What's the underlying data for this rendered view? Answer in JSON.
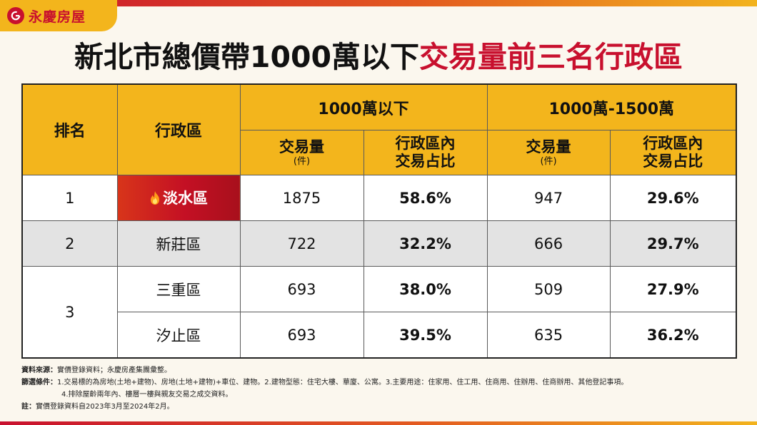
{
  "brand": {
    "name": "永慶房屋",
    "primary_color": "#c8102e",
    "accent_color": "#f3b51c",
    "logo_icon": "g-circle-icon"
  },
  "title": {
    "black": "新北市總價帶1000萬以下",
    "red": "交易量前三名行政區"
  },
  "table": {
    "col_rank": "排名",
    "col_district": "行政區",
    "group1": "1000萬以下",
    "group2": "1000萬-1500萬",
    "sub_volume": "交易量",
    "sub_unit": "(件)",
    "sub_share_line1": "行政區內",
    "sub_share_line2": "交易占比",
    "rows": [
      {
        "rank": "1",
        "district": "淡水區",
        "vol_under_1000": "1875",
        "share_under_1000": "58.6%",
        "vol_1000_1500": "947",
        "share_1000_1500": "29.6%",
        "highlight": true,
        "icon": "fire-icon"
      },
      {
        "rank": "2",
        "district": "新莊區",
        "vol_under_1000": "722",
        "share_under_1000": "32.2%",
        "vol_1000_1500": "666",
        "share_1000_1500": "29.7%"
      },
      {
        "rank": "3",
        "district": "三重區",
        "vol_under_1000": "693",
        "share_under_1000": "38.0%",
        "vol_1000_1500": "509",
        "share_1000_1500": "27.9%"
      },
      {
        "rank": "3",
        "district": "汐止區",
        "vol_under_1000": "693",
        "share_under_1000": "39.5%",
        "vol_1000_1500": "635",
        "share_1000_1500": "36.2%"
      }
    ]
  },
  "notes": {
    "source_label": "資料來源：",
    "source_text": "實價登錄資料；永慶房產集團彙整。",
    "filter_label": "篩選條件：",
    "filter_line1": "1.交易標的為房地(土地+建物)、房地(土地+建物)+車位、建物。2.建物型態：住宅大樓、華廈、公寓。3.主要用途：住家用、住工用、住商用、住辦用、住商辦用、其他登記事項。",
    "filter_line2": "4.排除屋齡兩年內、樓層一樓與親友交易之成交資料。",
    "note_label": "註：",
    "note_text": "實價登錄資料自2023年3月至2024年2月。"
  }
}
